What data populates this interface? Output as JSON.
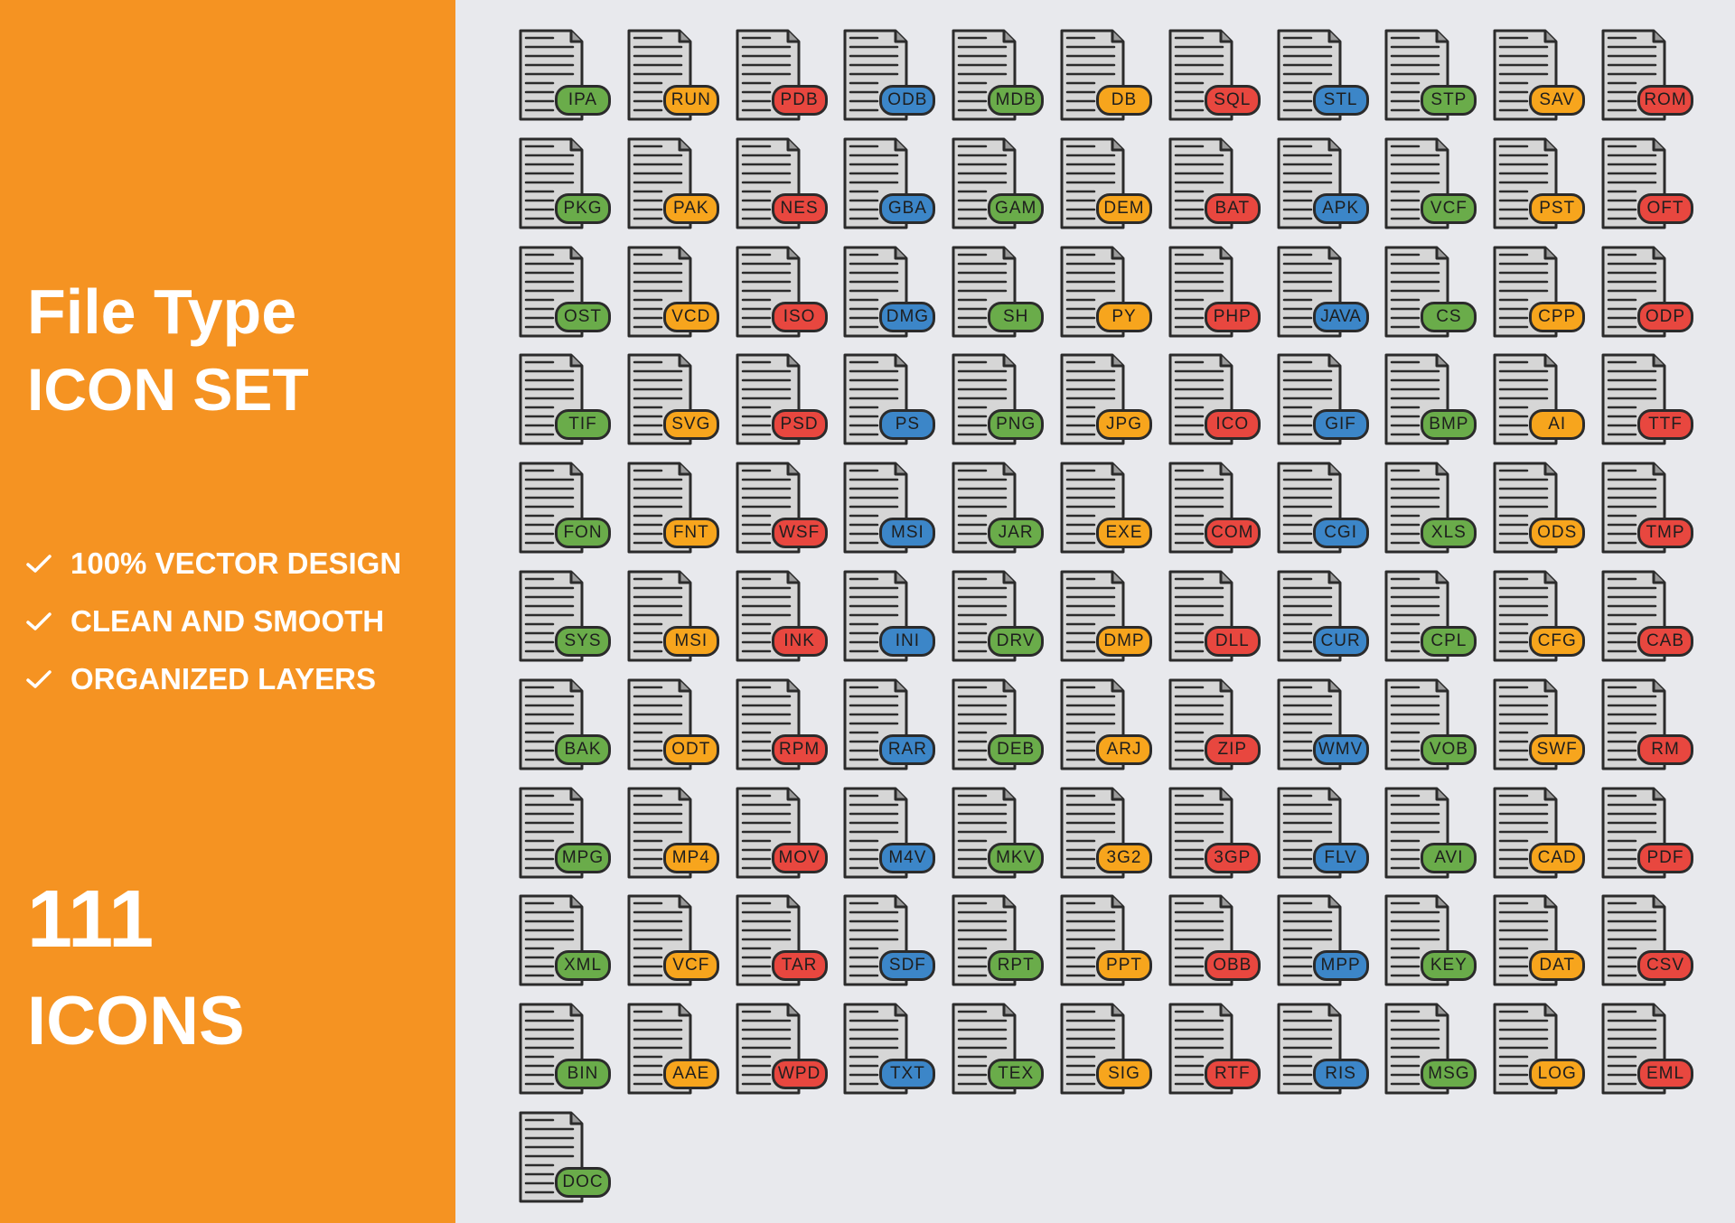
{
  "panel": {
    "title_line1": "File Type",
    "title_line2": "ICON SET",
    "features": [
      "100% VECTOR DESIGN",
      "CLEAN AND SMOOTH",
      "ORGANIZED LAYERS"
    ],
    "count": "111",
    "count_label": "ICONS",
    "background": "#f59322"
  },
  "colors": {
    "green": "#6aac4a",
    "orange": "#f7a51d",
    "red": "#e8473f",
    "blue": "#3c86c8"
  },
  "icon_color_cycle": [
    "green",
    "orange",
    "red",
    "blue"
  ],
  "icons": [
    "IPA",
    "RUN",
    "PDB",
    "ODB",
    "MDB",
    "DB",
    "SQL",
    "STL",
    "STP",
    "SAV",
    "ROM",
    "PKG",
    "PAK",
    "NES",
    "GBA",
    "GAM",
    "DEM",
    "BAT",
    "APK",
    "VCF",
    "PST",
    "OFT",
    "OST",
    "VCD",
    "ISO",
    "DMG",
    "SH",
    "PY",
    "PHP",
    "JAVA",
    "CS",
    "CPP",
    "ODP",
    "TIF",
    "SVG",
    "PSD",
    "PS",
    "PNG",
    "JPG",
    "ICO",
    "GIF",
    "BMP",
    "AI",
    "TTF",
    "FON",
    "FNT",
    "WSF",
    "MSI",
    "JAR",
    "EXE",
    "COM",
    "CGI",
    "XLS",
    "ODS",
    "TMP",
    "SYS",
    "MSI",
    "INK",
    "INI",
    "DRV",
    "DMP",
    "DLL",
    "CUR",
    "CPL",
    "CFG",
    "CAB",
    "BAK",
    "ODT",
    "RPM",
    "RAR",
    "DEB",
    "ARJ",
    "ZIP",
    "WMV",
    "VOB",
    "SWF",
    "RM",
    "MPG",
    "MP4",
    "MOV",
    "M4V",
    "MKV",
    "3G2",
    "3GP",
    "FLV",
    "AVI",
    "CAD",
    "PDF",
    "XML",
    "VCF",
    "TAR",
    "SDF",
    "RPT",
    "PPT",
    "OBB",
    "MPP",
    "KEY",
    "DAT",
    "CSV",
    "BIN",
    "AAE",
    "WPD",
    "TXT",
    "TEX",
    "SIG",
    "RTF",
    "RIS",
    "MSG",
    "LOG",
    "EML",
    "DOC"
  ]
}
